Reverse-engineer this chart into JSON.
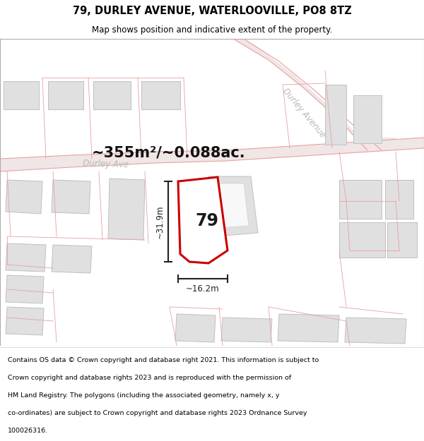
{
  "title": "79, DURLEY AVENUE, WATERLOOVILLE, PO8 8TZ",
  "subtitle": "Map shows position and indicative extent of the property.",
  "area_text": "~355m²/~0.088ac.",
  "number_label": "79",
  "dim_width": "~16.2m",
  "dim_height": "~31.9m",
  "road_label_1": "Durley Ave",
  "road_label_2": "Durley Avenue",
  "footer_lines": [
    "Contains OS data © Crown copyright and database right 2021. This information is subject to",
    "Crown copyright and database rights 2023 and is reproduced with the permission of",
    "HM Land Registry. The polygons (including the associated geometry, namely x, y",
    "co-ordinates) are subject to Crown copyright and database rights 2023 Ordnance Survey",
    "100026316."
  ],
  "map_bg": "#ffffff",
  "red_plot_color": "#cc0000",
  "building_fill": "#e0e0e0",
  "building_edge": "#c0c0c0",
  "road_fill": "#f2e8e8",
  "road_line_color": "#e8a0a0",
  "road_label_color": "#b8b8b8",
  "dim_color": "#222222"
}
